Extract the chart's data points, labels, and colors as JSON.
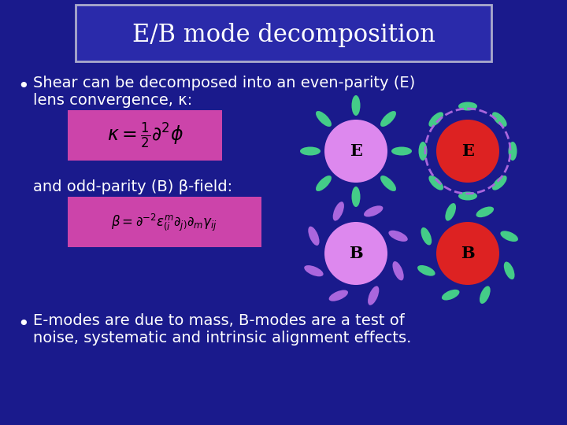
{
  "title": "E/B mode decomposition",
  "bg_color": "#1a1a8c",
  "title_box_color": "#2a2aaa",
  "title_box_edge": "#aaaacc",
  "title_color": "white",
  "text_color": "white",
  "formula_bg": "#cc44aa",
  "bullet1_line1": "Shear can be decomposed into an even-parity (E)",
  "bullet1_line2": "lens convergence, κ:",
  "and_text": "and odd-parity (B) β-field:",
  "bullet2_line1": "E-modes are due to mass, B-modes are a test of",
  "bullet2_line2": "noise, systematic and intrinsic alignment effects.",
  "circle_pink": "#dd88ee",
  "circle_red": "#dd2222",
  "spoke_teal": "#44cc88",
  "spoke_purple": "#aa66dd",
  "label_E": "E",
  "label_B": "B",
  "formula1_latex": "$\\kappa = \\frac{1}{2}\\partial^2\\phi$",
  "formula2_latex": "$\\beta = \\partial^{-2}\\varepsilon^m_{(i}\\partial_{j)}\\partial_m\\gamma_{ij}$"
}
